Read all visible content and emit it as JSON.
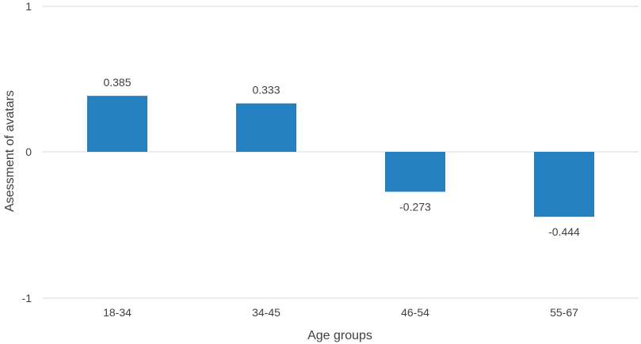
{
  "chart_data": {
    "type": "bar",
    "categories": [
      "18-34",
      "34-45",
      "46-54",
      "55-67"
    ],
    "values": [
      0.385,
      0.333,
      -0.273,
      -0.444
    ],
    "data_labels": [
      "0.385",
      "0.333",
      "-0.273",
      "-0.444"
    ],
    "xlabel": "Age groups",
    "ylabel": "Asessment of avatars",
    "ylim": [
      -1,
      1
    ],
    "yticks": [
      1,
      0,
      -1
    ],
    "ytick_labels": [
      "1",
      "0",
      "-1"
    ],
    "grid": true,
    "bar_color": "#2580C1",
    "grid_color": "#D9D9D9"
  }
}
